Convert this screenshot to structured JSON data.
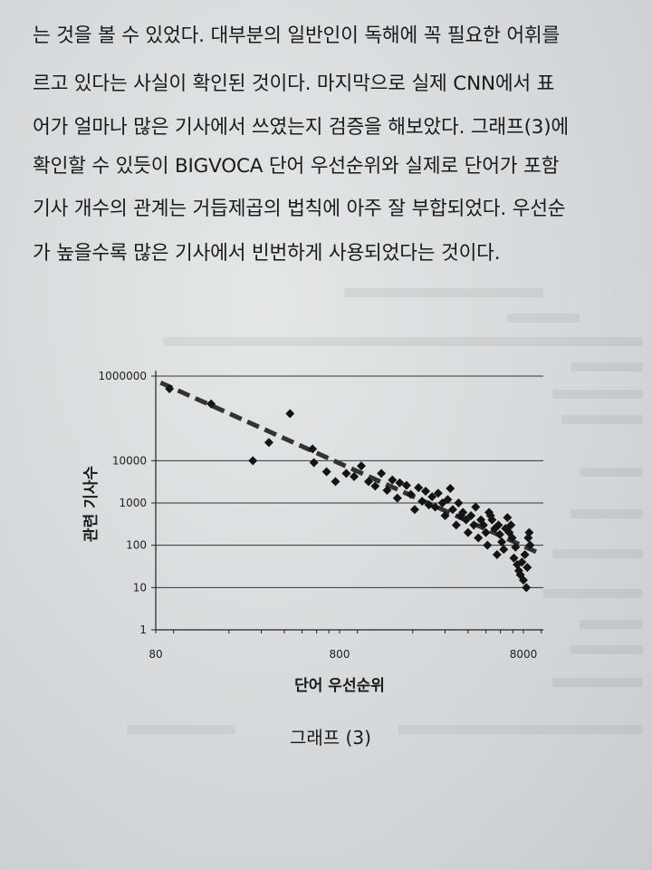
{
  "page": {
    "lines": [
      "는 것을 볼 수 있었다. 대부분의 일반인이 독해에 꼭 필요한 어휘를",
      "르고 있다는 사실이 확인된 것이다. 마지막으로 실제 CNN에서 표",
      "어가 얼마나 많은 기사에서 쓰였는지 검증을 해보았다. 그래프(3)에",
      "확인할 수 있듯이 BIGVOCA 단어 우선순위와 실제로 단어가 포함",
      "기사 개수의 관계는 거듭제곱의 법칙에 아주 잘 부합되었다. 우선순",
      "가 높을수록 많은 기사에서 빈번하게 사용되었다는 것이다."
    ],
    "caption": "그래프 (3)"
  },
  "chart_data": {
    "type": "scatter",
    "xlabel": "단어 우선순위",
    "ylabel": "관련 기사수",
    "x_scale": "log",
    "y_scale": "log",
    "xlim": [
      80,
      10000
    ],
    "ylim": [
      1,
      1000000
    ],
    "x_ticks": [
      80,
      800,
      8000
    ],
    "x_tick_labels": [
      "80",
      "800",
      "8000"
    ],
    "y_ticks": [
      1,
      10,
      100,
      1000,
      10000,
      1000000
    ],
    "y_tick_labels": [
      "1",
      "10",
      "100",
      "1000",
      "10000",
      "1000000"
    ],
    "grid": "horizontal",
    "trendline": {
      "style": "dashed",
      "from": [
        85,
        700000
      ],
      "to": [
        10000,
        70
      ]
    },
    "points": [
      [
        95,
        500000
      ],
      [
        160,
        220000
      ],
      [
        270,
        10000
      ],
      [
        330,
        27000
      ],
      [
        430,
        130000
      ],
      [
        570,
        19000
      ],
      [
        580,
        9000
      ],
      [
        680,
        5500
      ],
      [
        760,
        3200
      ],
      [
        870,
        5000
      ],
      [
        960,
        4200
      ],
      [
        1050,
        7500
      ],
      [
        1150,
        3200
      ],
      [
        1250,
        2500
      ],
      [
        1350,
        5000
      ],
      [
        1450,
        2000
      ],
      [
        1550,
        3500
      ],
      [
        1650,
        1300
      ],
      [
        1700,
        3000
      ],
      [
        1850,
        2600
      ],
      [
        1950,
        1600
      ],
      [
        2050,
        700
      ],
      [
        2150,
        2300
      ],
      [
        2250,
        1100
      ],
      [
        2350,
        1900
      ],
      [
        2450,
        900
      ],
      [
        2550,
        1400
      ],
      [
        2650,
        800
      ],
      [
        2750,
        1700
      ],
      [
        2900,
        1000
      ],
      [
        3000,
        500
      ],
      [
        3100,
        1200
      ],
      [
        3200,
        2200
      ],
      [
        3300,
        700
      ],
      [
        3450,
        300
      ],
      [
        3550,
        1000
      ],
      [
        3650,
        500
      ],
      [
        3750,
        600
      ],
      [
        3900,
        400
      ],
      [
        4000,
        200
      ],
      [
        4150,
        500
      ],
      [
        4300,
        300
      ],
      [
        4400,
        800
      ],
      [
        4550,
        150
      ],
      [
        4700,
        400
      ],
      [
        4850,
        300
      ],
      [
        5000,
        200
      ],
      [
        5100,
        100
      ],
      [
        5200,
        600
      ],
      [
        5300,
        500
      ],
      [
        5400,
        400
      ],
      [
        5600,
        250
      ],
      [
        5750,
        60
      ],
      [
        5850,
        300
      ],
      [
        5950,
        180
      ],
      [
        6100,
        120
      ],
      [
        6250,
        80
      ],
      [
        6400,
        250
      ],
      [
        6550,
        450
      ],
      [
        6700,
        200
      ],
      [
        6850,
        300
      ],
      [
        6950,
        150
      ],
      [
        7100,
        50
      ],
      [
        7250,
        90
      ],
      [
        7400,
        35
      ],
      [
        7550,
        25
      ],
      [
        7700,
        20
      ],
      [
        7850,
        40
      ],
      [
        8000,
        15
      ],
      [
        8150,
        60
      ],
      [
        8300,
        10
      ],
      [
        8400,
        30
      ],
      [
        8500,
        150
      ],
      [
        8600,
        200
      ],
      [
        8700,
        100
      ]
    ]
  }
}
